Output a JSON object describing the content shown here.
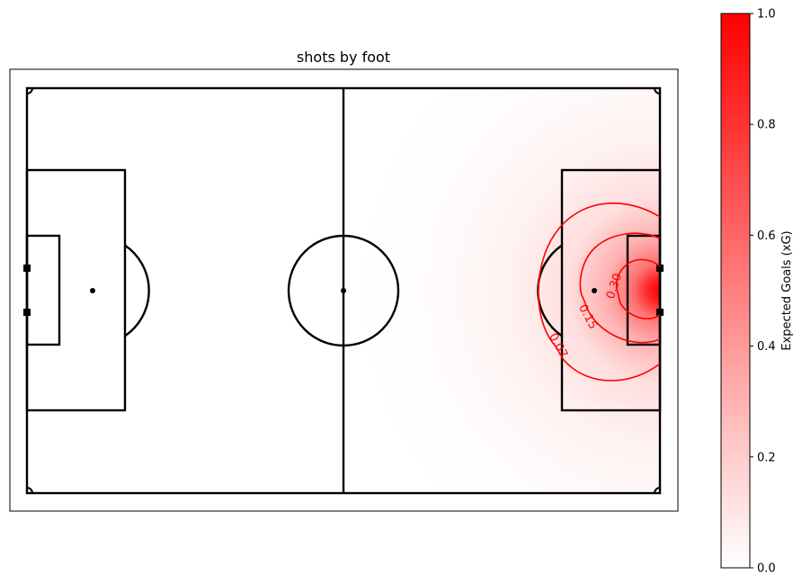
{
  "chart_data": {
    "type": "heatmap",
    "title": "shots by foot",
    "xlabel": "",
    "ylabel": "",
    "pitch": {
      "length": 105,
      "width": 68,
      "features": [
        "halfway-line",
        "center-circle",
        "center-spot",
        "penalty-areas",
        "goal-areas",
        "penalty-spots",
        "penalty-arcs",
        "goal-posts",
        "corner-arcs"
      ]
    },
    "colormap": [
      "#ffffff",
      "#ff0000"
    ],
    "contour_color": "#ff0000",
    "contours": [
      {
        "level": 0.07,
        "label": "0.07"
      },
      {
        "level": 0.15,
        "label": "0.15"
      },
      {
        "level": 0.3,
        "label": "0.30"
      }
    ],
    "colorbar": {
      "label": "Expected Goals (xG)",
      "range": [
        0.0,
        1.0
      ],
      "ticks": [
        {
          "value": 0.0,
          "label": "0.0"
        },
        {
          "value": 0.2,
          "label": "0.2"
        },
        {
          "value": 0.4,
          "label": "0.4"
        },
        {
          "value": 0.6,
          "label": "0.6"
        },
        {
          "value": 0.8,
          "label": "0.8"
        },
        {
          "value": 1.0,
          "label": "1.0"
        }
      ]
    }
  }
}
